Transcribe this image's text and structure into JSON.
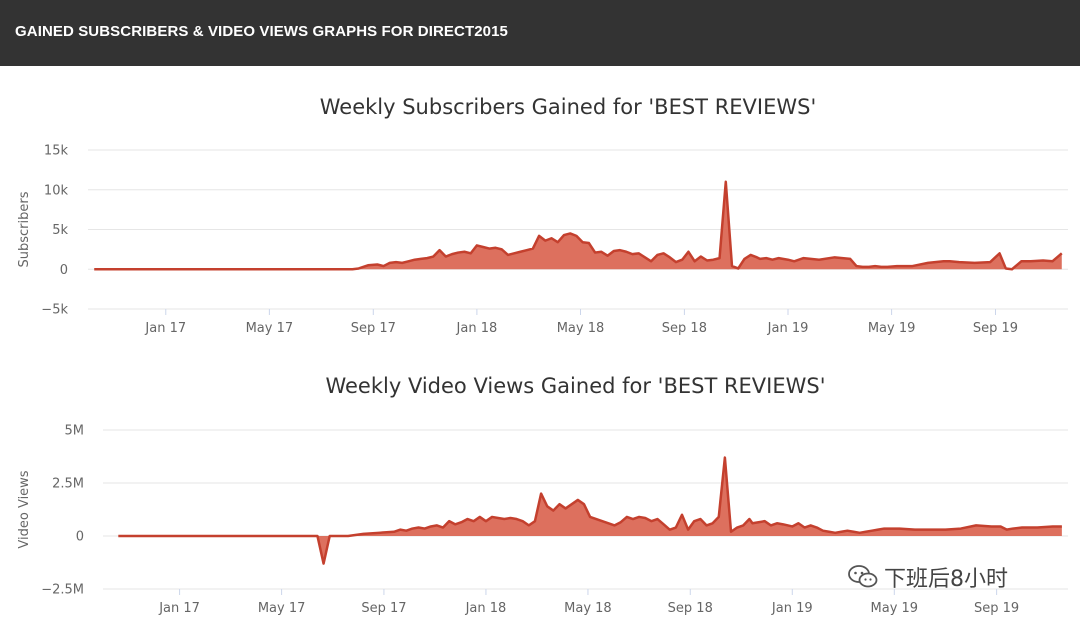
{
  "header": {
    "title": "GAINED SUBSCRIBERS & VIDEO VIEWS GRAPHS FOR DIRECT2015"
  },
  "colors": {
    "header_bg": "#333333",
    "series": "#c4402e",
    "area": "#d9604d"
  },
  "watermark": {
    "text": "下班后8小时",
    "icon": "wechat-icon"
  },
  "chart_data": [
    {
      "type": "area",
      "title": "Weekly Subscribers Gained for 'BEST REVIEWS'",
      "ylabel": "Subscribers",
      "xlabel": "",
      "ylim": [
        -5000,
        15000
      ],
      "y_ticks": [
        15000,
        10000,
        5000,
        0,
        -5000
      ],
      "y_tick_labels": [
        "15k",
        "10k",
        "5k",
        "0",
        "−5k"
      ],
      "x_range": [
        2016.75,
        2019.9
      ],
      "x_ticks": [
        2017.0,
        2017.333,
        2017.667,
        2018.0,
        2018.333,
        2018.667,
        2019.0,
        2019.333,
        2019.667
      ],
      "x_tick_labels": [
        "Jan 17",
        "May 17",
        "Sep 17",
        "Jan 18",
        "May 18",
        "Sep 18",
        "Jan 19",
        "May 19",
        "Sep 19"
      ],
      "grid": true,
      "series": [
        {
          "name": "Subscribers",
          "x": [
            2016.77,
            2016.85,
            2016.95,
            2017.05,
            2017.15,
            2017.25,
            2017.35,
            2017.45,
            2017.55,
            2017.6,
            2017.62,
            2017.65,
            2017.68,
            2017.7,
            2017.72,
            2017.74,
            2017.76,
            2017.78,
            2017.8,
            2017.82,
            2017.84,
            2017.86,
            2017.88,
            2017.9,
            2017.92,
            2017.94,
            2017.96,
            2017.98,
            2018.0,
            2018.02,
            2018.04,
            2018.06,
            2018.08,
            2018.1,
            2018.12,
            2018.14,
            2018.16,
            2018.18,
            2018.2,
            2018.22,
            2018.24,
            2018.26,
            2018.28,
            2018.3,
            2018.32,
            2018.34,
            2018.36,
            2018.38,
            2018.4,
            2018.42,
            2018.44,
            2018.46,
            2018.48,
            2018.5,
            2018.52,
            2018.54,
            2018.56,
            2018.58,
            2018.6,
            2018.62,
            2018.64,
            2018.66,
            2018.68,
            2018.7,
            2018.72,
            2018.74,
            2018.76,
            2018.78,
            2018.8,
            2018.82,
            2018.84,
            2018.86,
            2018.88,
            2018.9,
            2018.91,
            2018.93,
            2018.95,
            2018.97,
            2019.0,
            2019.02,
            2019.05,
            2019.1,
            2019.15,
            2019.2,
            2019.22,
            2019.24,
            2019.26,
            2019.28,
            2019.3,
            2019.32,
            2019.35,
            2019.4,
            2019.45,
            2019.5,
            2019.52,
            2019.55,
            2019.6,
            2019.65,
            2019.68,
            2019.7,
            2019.72,
            2019.75,
            2019.78,
            2019.82,
            2019.85,
            2019.88
          ],
          "values": [
            0,
            0,
            0,
            0,
            0,
            0,
            0,
            0,
            0,
            0,
            100,
            500,
            600,
            400,
            800,
            900,
            800,
            1000,
            1200,
            1300,
            1400,
            1600,
            2400,
            1600,
            1900,
            2100,
            2200,
            2000,
            3000,
            2800,
            2600,
            2700,
            2500,
            1800,
            2000,
            2200,
            2400,
            2600,
            4200,
            3600,
            3900,
            3400,
            4300,
            4500,
            4200,
            3400,
            3300,
            2100,
            2200,
            1700,
            2300,
            2400,
            2200,
            1900,
            2000,
            1500,
            1000,
            1800,
            2000,
            1500,
            900,
            1200,
            2200,
            1000,
            1600,
            1100,
            1200,
            1400,
            11000,
            400,
            100,
            1300,
            1800,
            1500,
            1300,
            1400,
            1200,
            1400,
            1200,
            1000,
            1400,
            1200,
            1500,
            1300,
            400,
            300,
            300,
            400,
            300,
            300,
            400,
            400,
            800,
            1000,
            1000,
            900,
            800,
            900,
            2000,
            100,
            0,
            1000,
            1000,
            1100,
            1000,
            2000
          ]
        }
      ]
    },
    {
      "type": "area",
      "title": "Weekly Video Views Gained for 'BEST REVIEWS'",
      "ylabel": "Video Views",
      "xlabel": "",
      "ylim": [
        -2500000,
        5000000
      ],
      "y_ticks": [
        5000000,
        2500000,
        0,
        -2500000
      ],
      "y_tick_labels": [
        "5M",
        "2.5M",
        "0",
        "−2.5M"
      ],
      "x_range": [
        2016.75,
        2019.9
      ],
      "x_ticks": [
        2017.0,
        2017.333,
        2017.667,
        2018.0,
        2018.333,
        2018.667,
        2019.0,
        2019.333,
        2019.667
      ],
      "x_tick_labels": [
        "Jan 17",
        "May 17",
        "Sep 17",
        "Jan 18",
        "May 18",
        "Sep 18",
        "Jan 19",
        "May 19",
        "Sep 19"
      ],
      "grid": true,
      "series": [
        {
          "name": "Video Views",
          "x": [
            2016.8,
            2016.9,
            2017.0,
            2017.1,
            2017.2,
            2017.3,
            2017.4,
            2017.45,
            2017.47,
            2017.49,
            2017.52,
            2017.55,
            2017.6,
            2017.65,
            2017.7,
            2017.72,
            2017.74,
            2017.76,
            2017.78,
            2017.8,
            2017.82,
            2017.84,
            2017.86,
            2017.88,
            2017.9,
            2017.92,
            2017.94,
            2017.96,
            2017.98,
            2018.0,
            2018.02,
            2018.04,
            2018.06,
            2018.08,
            2018.1,
            2018.12,
            2018.14,
            2018.16,
            2018.18,
            2018.2,
            2018.22,
            2018.24,
            2018.26,
            2018.28,
            2018.3,
            2018.32,
            2018.34,
            2018.36,
            2018.38,
            2018.4,
            2018.42,
            2018.44,
            2018.46,
            2018.48,
            2018.5,
            2018.52,
            2018.54,
            2018.56,
            2018.58,
            2018.6,
            2018.62,
            2018.64,
            2018.66,
            2018.68,
            2018.7,
            2018.72,
            2018.74,
            2018.76,
            2018.78,
            2018.8,
            2018.82,
            2018.84,
            2018.86,
            2018.87,
            2018.89,
            2018.91,
            2018.93,
            2018.95,
            2018.97,
            2019.0,
            2019.02,
            2019.04,
            2019.06,
            2019.08,
            2019.1,
            2019.12,
            2019.14,
            2019.16,
            2019.18,
            2019.2,
            2019.22,
            2019.24,
            2019.26,
            2019.28,
            2019.3,
            2019.35,
            2019.4,
            2019.45,
            2019.5,
            2019.55,
            2019.6,
            2019.65,
            2019.68,
            2019.7,
            2019.72,
            2019.75,
            2019.8,
            2019.85,
            2019.88
          ],
          "values": [
            0,
            0,
            0,
            0,
            0,
            0,
            0,
            0,
            -1300000,
            0,
            0,
            0,
            100000,
            150000,
            200000,
            300000,
            250000,
            350000,
            400000,
            350000,
            450000,
            500000,
            400000,
            700000,
            550000,
            650000,
            800000,
            700000,
            900000,
            700000,
            900000,
            850000,
            800000,
            850000,
            800000,
            700000,
            500000,
            700000,
            2000000,
            1400000,
            1200000,
            1500000,
            1300000,
            1500000,
            1700000,
            1500000,
            900000,
            800000,
            700000,
            600000,
            500000,
            650000,
            900000,
            800000,
            900000,
            850000,
            700000,
            800000,
            550000,
            300000,
            400000,
            1000000,
            300000,
            700000,
            800000,
            500000,
            600000,
            900000,
            3700000,
            200000,
            400000,
            500000,
            800000,
            600000,
            650000,
            700000,
            500000,
            600000,
            550000,
            450000,
            600000,
            400000,
            500000,
            400000,
            250000,
            200000,
            150000,
            200000,
            250000,
            200000,
            150000,
            200000,
            250000,
            300000,
            350000,
            350000,
            300000,
            300000,
            300000,
            350000,
            500000,
            450000,
            450000,
            300000,
            350000,
            400000,
            400000,
            450000,
            450000
          ]
        }
      ]
    }
  ]
}
